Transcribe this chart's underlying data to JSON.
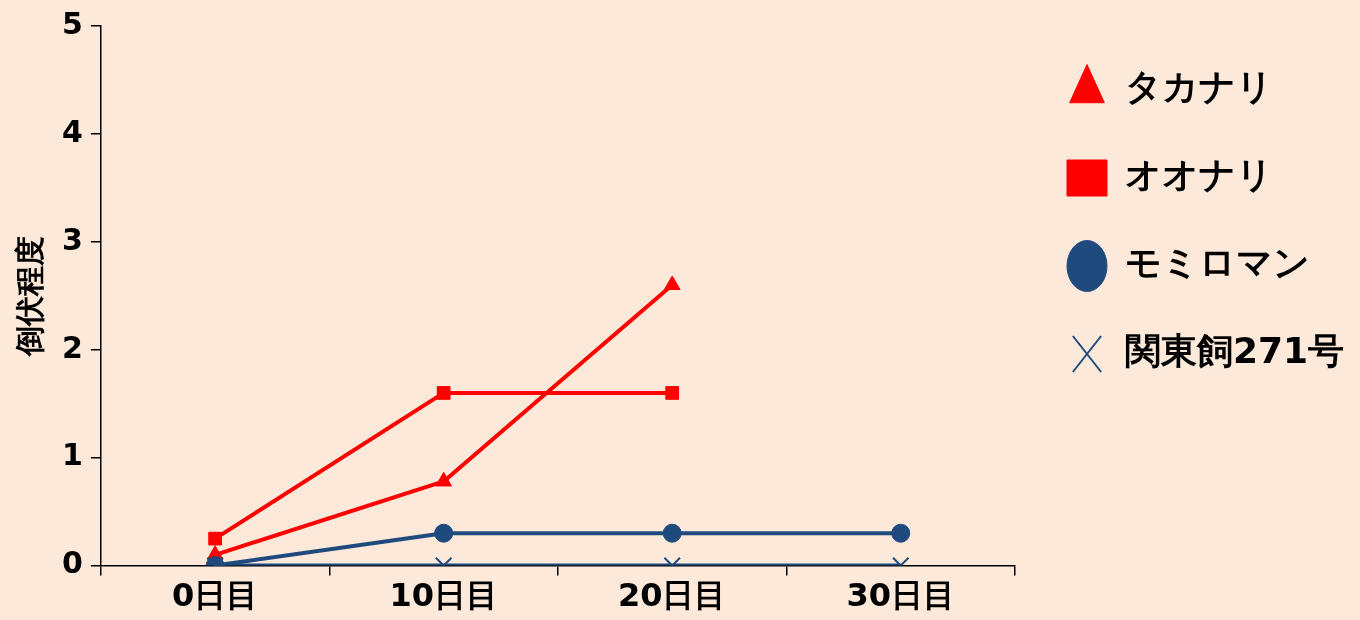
{
  "chart_data": {
    "type": "line",
    "ylabel": "倒伏程度",
    "categories": [
      "0日目",
      "10日目",
      "20日目",
      "30日目"
    ],
    "series": [
      {
        "name": "タカナリ",
        "color": "#ff0000",
        "marker": "triangle",
        "values": [
          0.1,
          0.78,
          2.6,
          null
        ]
      },
      {
        "name": "オオナリ",
        "color": "#ff0000",
        "marker": "square",
        "values": [
          0.25,
          1.6,
          1.6,
          null
        ]
      },
      {
        "name": "モミロマン",
        "color": "#1f4a7e",
        "marker": "circle",
        "values": [
          0,
          0.3,
          0.3,
          0.3
        ]
      },
      {
        "name": "関東飼271号",
        "color": "#1f4a7e",
        "marker": "cross",
        "values": [
          0,
          0,
          0,
          0
        ]
      }
    ],
    "ylim": [
      0,
      5
    ],
    "yticks": [
      0,
      1,
      2,
      3,
      4,
      5
    ],
    "grid": false,
    "legend": "right",
    "line_style": "solid"
  }
}
